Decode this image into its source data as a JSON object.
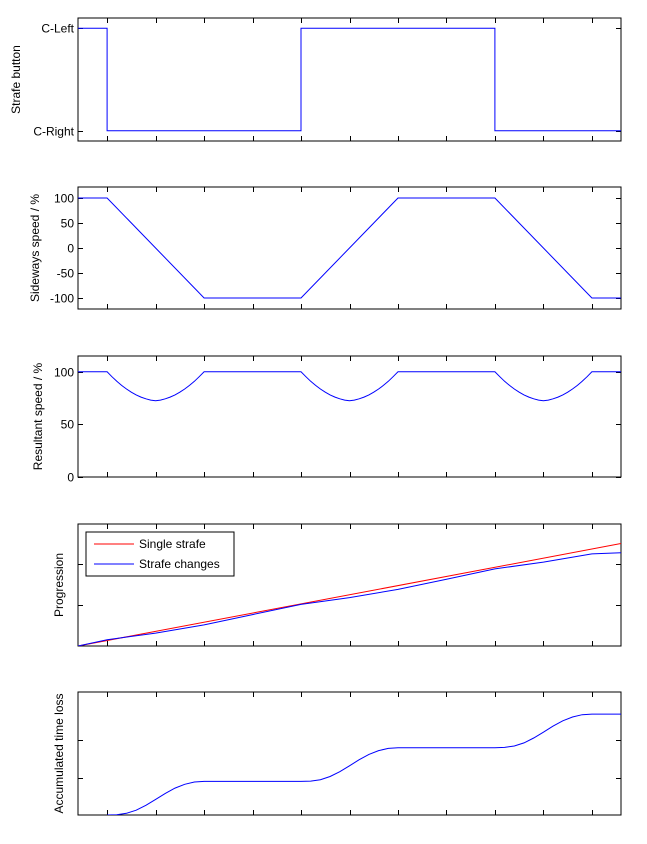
{
  "colors": {
    "blue": "#0000ff",
    "red": "#ff0000",
    "axis": "#000000",
    "background": "#ffffff"
  },
  "chart_data": [
    {
      "type": "line",
      "ylabel": "Strafe button",
      "xlim": [
        0,
        11.2
      ],
      "ylim": [
        -0.2,
        2.2
      ],
      "ytick_values": [
        0,
        2
      ],
      "ytick_labels": [
        "C-Right",
        "C-Left"
      ],
      "xticks": [
        0.6,
        1.6,
        2.6,
        3.6,
        4.6,
        5.6,
        6.6,
        7.6,
        8.6,
        9.6,
        10.6
      ],
      "series": [
        {
          "color": "#0000ff",
          "x": [
            0,
            0.6,
            0.6,
            4.6,
            4.6,
            8.6,
            8.6,
            11.2
          ],
          "y": [
            2,
            2,
            0,
            0,
            2,
            2,
            0,
            0
          ]
        }
      ]
    },
    {
      "type": "line",
      "ylabel": "Sideways speed / %",
      "xlim": [
        0,
        11.2
      ],
      "ylim": [
        -122,
        122
      ],
      "ytick_values": [
        -100,
        -50,
        0,
        50,
        100
      ],
      "ytick_labels": [
        "-100",
        "-50",
        "0",
        "50",
        "100"
      ],
      "xticks": [
        0.6,
        1.6,
        2.6,
        3.6,
        4.6,
        5.6,
        6.6,
        7.6,
        8.6,
        9.6,
        10.6
      ],
      "series": [
        {
          "color": "#0000ff",
          "x": [
            0,
            0.6,
            2.6,
            4.6,
            6.6,
            8.6,
            10.6,
            11.2
          ],
          "y": [
            100,
            100,
            -100,
            -100,
            100,
            100,
            -100,
            -100
          ]
        }
      ]
    },
    {
      "type": "line",
      "ylabel": "Resultant speed / %",
      "xlim": [
        0,
        11.2
      ],
      "ylim": [
        0,
        115
      ],
      "ytick_values": [
        0,
        50,
        100
      ],
      "ytick_labels": [
        "0",
        "50",
        "100"
      ],
      "xticks": [
        0.6,
        1.6,
        2.6,
        3.6,
        4.6,
        5.6,
        6.6,
        7.6,
        8.6,
        9.6,
        10.6
      ],
      "series": [
        {
          "color": "#0000ff",
          "x": [
            0,
            0.6,
            0.7,
            0.8,
            0.9,
            1.0,
            1.1,
            1.2,
            1.3,
            1.4,
            1.5,
            1.6,
            1.7,
            1.8,
            1.9,
            2.0,
            2.1,
            2.2,
            2.3,
            2.4,
            2.5,
            2.6,
            4.6,
            4.7,
            4.8,
            4.9,
            5.0,
            5.1,
            5.2,
            5.3,
            5.4,
            5.5,
            5.6,
            5.7,
            5.8,
            5.9,
            6.0,
            6.1,
            6.2,
            6.3,
            6.4,
            6.5,
            6.6,
            8.6,
            8.7,
            8.8,
            8.9,
            9.0,
            9.1,
            9.2,
            9.3,
            9.4,
            9.5,
            9.6,
            9.7,
            9.8,
            9.9,
            10.0,
            10.1,
            10.2,
            10.3,
            10.4,
            10.5,
            10.6,
            11.2
          ],
          "y": [
            100,
            100,
            95.3,
            91.0,
            87.1,
            83.6,
            80.6,
            78.0,
            75.9,
            74.3,
            73.1,
            72.5,
            73.1,
            74.3,
            75.9,
            78.0,
            80.6,
            83.6,
            87.1,
            91.0,
            95.3,
            100,
            100,
            95.3,
            91.0,
            87.1,
            83.6,
            80.6,
            78.0,
            75.9,
            74.3,
            73.1,
            72.5,
            73.1,
            74.3,
            75.9,
            78.0,
            80.6,
            83.6,
            87.1,
            91.0,
            95.3,
            100,
            100,
            95.3,
            91.0,
            87.1,
            83.6,
            80.6,
            78.0,
            75.9,
            74.3,
            73.1,
            72.5,
            73.1,
            74.3,
            75.9,
            78.0,
            80.6,
            83.6,
            87.1,
            91.0,
            95.3,
            100,
            100
          ]
        }
      ]
    },
    {
      "type": "line",
      "ylabel": "Progression",
      "xlim": [
        0,
        11.2
      ],
      "ylim": [
        0,
        11.9
      ],
      "ytick_values": [
        4,
        8
      ],
      "ytick_labels": [],
      "xticks": [
        0.6,
        1.6,
        2.6,
        3.6,
        4.6,
        5.6,
        6.6,
        7.6,
        8.6,
        9.6,
        10.6
      ],
      "legend": {
        "location": "top-left"
      },
      "series": [
        {
          "name": "Single strafe",
          "color": "#ff0000",
          "x": [
            0,
            11.2
          ],
          "y": [
            0,
            10.0
          ]
        },
        {
          "name": "Strafe changes",
          "color": "#0000ff",
          "x": [
            0,
            0.6,
            1.6,
            2.6,
            3.6,
            4.6,
            5.6,
            6.6,
            7.6,
            8.6,
            9.6,
            10.6,
            11.2
          ],
          "y": [
            0,
            0.6,
            1.26,
            2.06,
            3.06,
            4.06,
            4.72,
            5.52,
            6.52,
            7.52,
            8.18,
            8.98,
            9.1
          ]
        }
      ]
    },
    {
      "type": "line",
      "ylabel": "Accumulated time loss",
      "xlim": [
        0,
        11.2
      ],
      "ylim": [
        0,
        1.32
      ],
      "ytick_values": [
        0.4,
        0.8
      ],
      "ytick_labels": [],
      "xticks": [
        0.6,
        1.6,
        2.6,
        3.6,
        4.6,
        5.6,
        6.6,
        7.6,
        8.6,
        9.6,
        10.6
      ],
      "series": [
        {
          "color": "#0000ff",
          "x": [
            0.6,
            0.8,
            1.0,
            1.2,
            1.4,
            1.6,
            1.8,
            2.0,
            2.2,
            2.4,
            2.6,
            4.6,
            4.8,
            5.0,
            5.2,
            5.4,
            5.6,
            5.8,
            6.0,
            6.2,
            6.4,
            6.6,
            8.6,
            8.8,
            9.0,
            9.2,
            9.4,
            9.6,
            9.8,
            10.0,
            10.2,
            10.4,
            10.6,
            11.2
          ],
          "y": [
            0,
            0.003,
            0.018,
            0.052,
            0.104,
            0.167,
            0.232,
            0.289,
            0.33,
            0.354,
            0.361,
            0.361,
            0.364,
            0.379,
            0.413,
            0.465,
            0.528,
            0.593,
            0.65,
            0.691,
            0.715,
            0.722,
            0.722,
            0.725,
            0.74,
            0.774,
            0.826,
            0.889,
            0.954,
            1.011,
            1.052,
            1.076,
            1.083,
            1.083
          ]
        }
      ]
    }
  ]
}
